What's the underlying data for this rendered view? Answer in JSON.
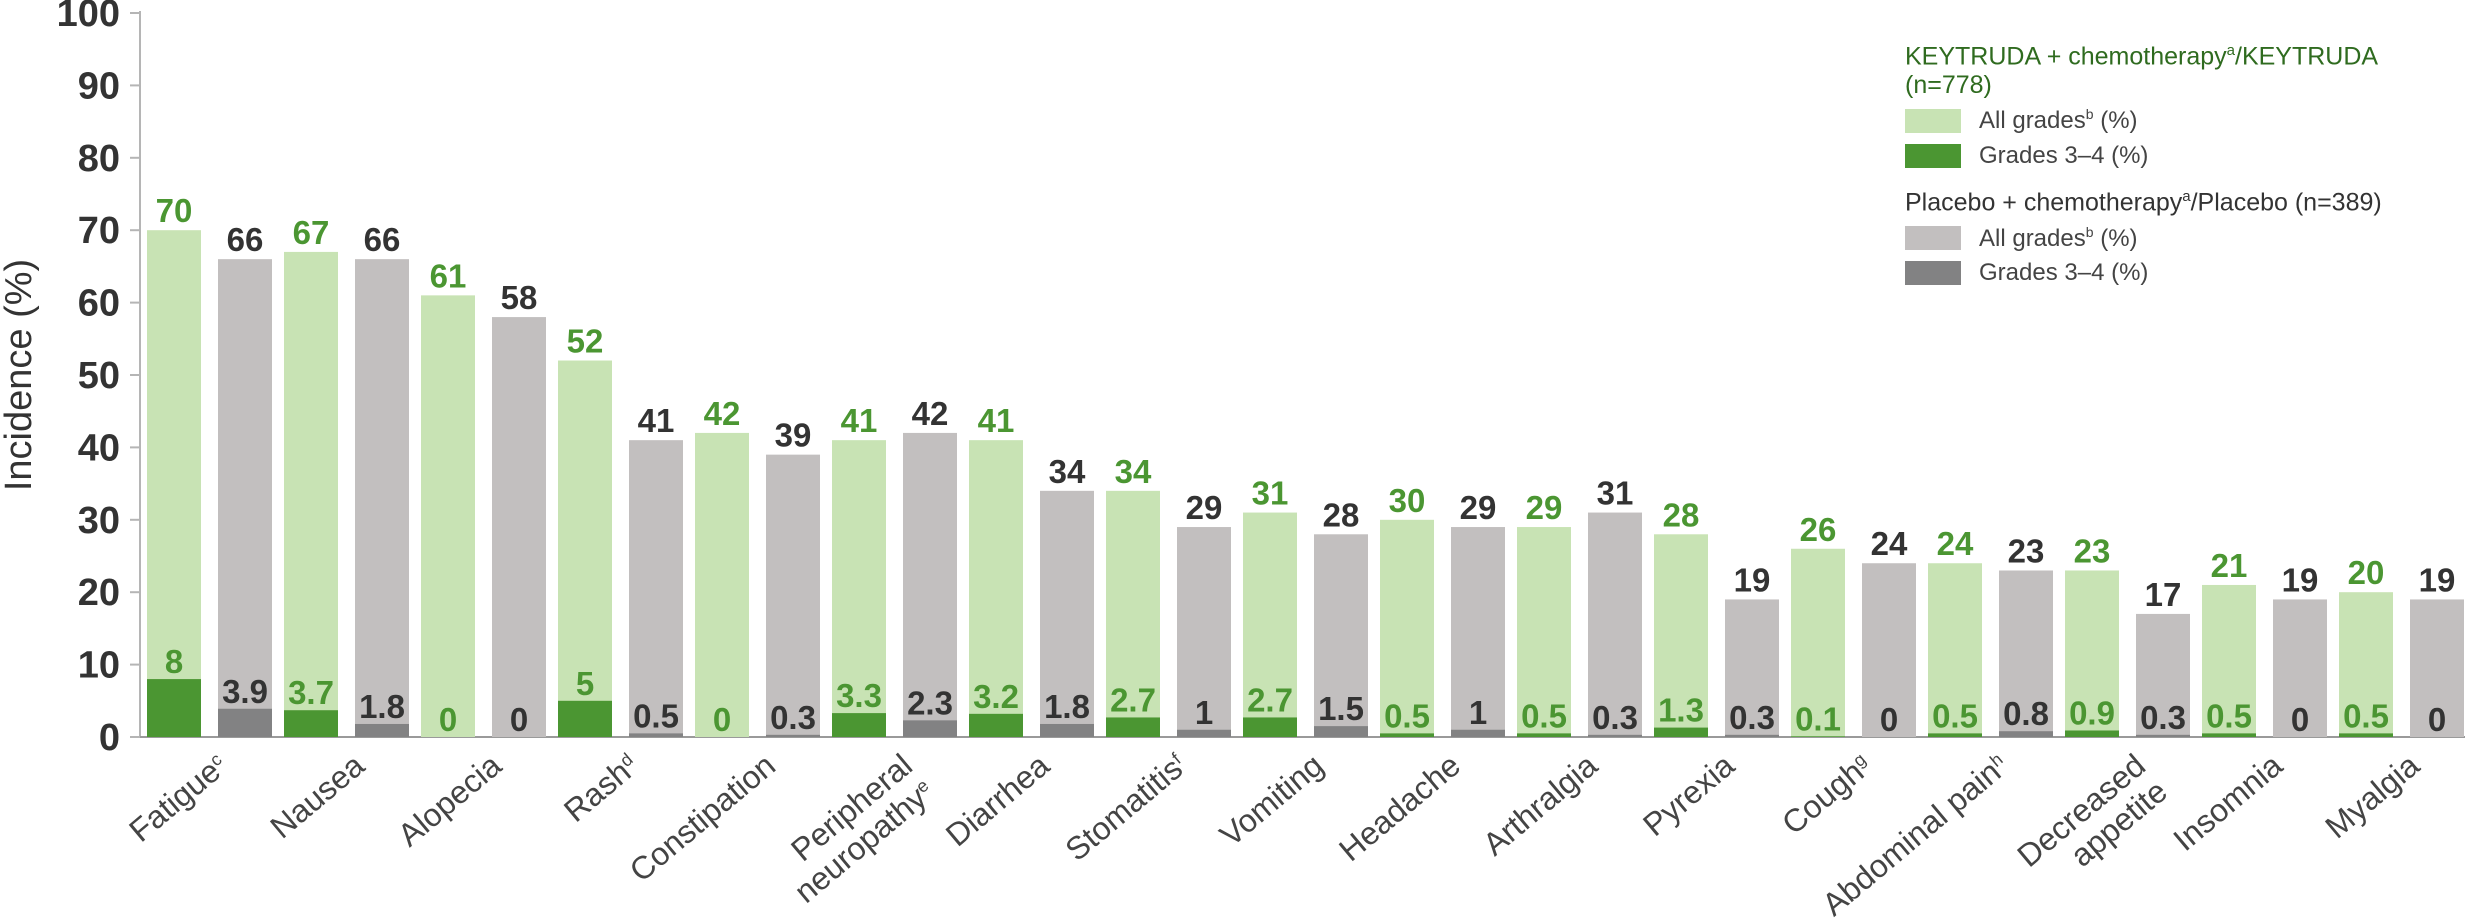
{
  "chart_data": {
    "type": "bar",
    "ylabel": "Incidence (%)",
    "ylim": [
      0,
      100
    ],
    "yticks": [
      "0",
      "10",
      "20",
      "30",
      "40",
      "50",
      "60",
      "70",
      "80",
      "90",
      "100"
    ],
    "grid": false,
    "legend_position": "top-right",
    "categories": [
      {
        "line1": "Fatigue",
        "sup": "c"
      },
      {
        "line1": "Nausea"
      },
      {
        "line1": "Alopecia"
      },
      {
        "line1": "Rash",
        "sup": "d"
      },
      {
        "line1": "Constipation"
      },
      {
        "line1": "Peripheral",
        "line2": "neuropathy",
        "sup": "e"
      },
      {
        "line1": "Diarrhea"
      },
      {
        "line1": "Stomatitis",
        "sup": "f"
      },
      {
        "line1": "Vomiting"
      },
      {
        "line1": "Headache"
      },
      {
        "line1": "Arthralgia"
      },
      {
        "line1": "Pyrexia"
      },
      {
        "line1": "Cough",
        "sup": "g"
      },
      {
        "line1": "Abdominal pain",
        "sup": "h"
      },
      {
        "line1": "Decreased",
        "line2": "appetite"
      },
      {
        "line1": "Insomnia"
      },
      {
        "line1": "Myalgia"
      }
    ],
    "groups": [
      {
        "name": "KEYTRUDA + chemotherapy",
        "name_sup": "a",
        "name_suffix": "/KEYTRUDA (n=778)",
        "all_label": "All grades",
        "grade_label": "Grades 3–4 (%)",
        "color_all": "#c8e3b4",
        "color_grade": "#4b9632",
        "label_color": "#4b9632",
        "all_grades": [
          "70",
          "67",
          "61",
          "52",
          "42",
          "41",
          "41",
          "34",
          "31",
          "30",
          "29",
          "28",
          "26",
          "24",
          "23",
          "21",
          "20"
        ],
        "grades_3_4": [
          "8",
          "3.7",
          "0",
          "5",
          "0",
          "3.3",
          "3.2",
          "2.7",
          "2.7",
          "0.5",
          "0.5",
          "1.3",
          "0.1",
          "0.5",
          "0.9",
          "0.5",
          "0.5"
        ]
      },
      {
        "name": "Placebo + chemotherapy",
        "name_sup": "a",
        "name_suffix": "/Placebo (n=389)",
        "all_label": "All grades",
        "grade_label": "Grades 3–4 (%)",
        "color_all": "#c2bfbf",
        "color_grade": "#828283",
        "label_color": "#333333",
        "all_grades": [
          "66",
          "66",
          "58",
          "41",
          "39",
          "42",
          "34",
          "29",
          "28",
          "29",
          "31",
          "19",
          "24",
          "23",
          "17",
          "19",
          "19"
        ],
        "grades_3_4": [
          "3.9",
          "1.8",
          "0",
          "0.5",
          "0.3",
          "2.3",
          "1.8",
          "1",
          "1.5",
          "1",
          "0.3",
          "0.3",
          "0",
          "0.8",
          "0.3",
          "0",
          "0"
        ]
      }
    ]
  },
  "legend": {
    "keytruda_title": "KEYTRUDA + chemotherapy",
    "keytruda_title_sup": "a",
    "keytruda_title_suffix": "/KEYTRUDA (n=778)",
    "placebo_title": "Placebo + chemotherapy",
    "placebo_title_sup": "a",
    "placebo_title_suffix": "/Placebo (n=389)",
    "all_grades_label": "All grades",
    "all_grades_sup": "b",
    "all_grades_suffix": " (%)",
    "grades34_label": "Grades 3–4 (%)",
    "keytruda_title_color": "#2f6b1f",
    "placebo_title_color": "#333333"
  }
}
